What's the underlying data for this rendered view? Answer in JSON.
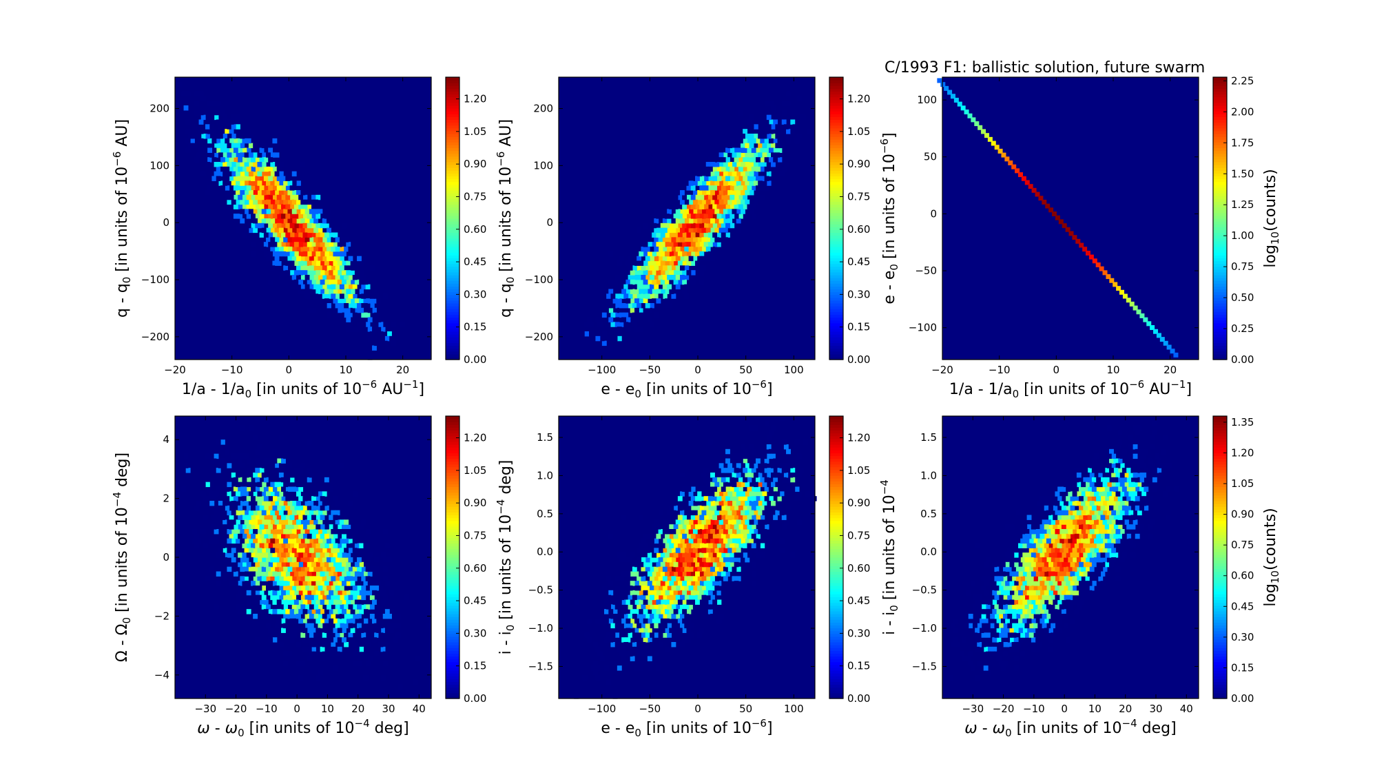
{
  "figure_title": "C/1993 F1:  ballistic solution, future swarm",
  "colormap": "jet",
  "chart_data": [
    {
      "type": "heatmap",
      "subtype": "hexbin",
      "xlabel": "1/a - 1/a0 [in units of 10-6 AU-1]",
      "ylabel": "q - q0 [in units of 10-6 AU]",
      "xlim": [
        -20,
        25
      ],
      "ylim": [
        -240,
        255
      ],
      "xticks": [
        -20,
        -10,
        0,
        10,
        20
      ],
      "yticks": [
        -200,
        -100,
        0,
        100,
        200
      ],
      "density": {
        "center": [
          0,
          0
        ],
        "x_sigma": 6.3,
        "y_sigma": 75,
        "correlation": -0.88,
        "points": 3500
      },
      "colorbar": {
        "ticks": [
          "0.00",
          "0.15",
          "0.30",
          "0.45",
          "0.60",
          "0.75",
          "0.90",
          "1.05",
          "1.20"
        ],
        "max": 1.3,
        "label": ""
      }
    },
    {
      "type": "heatmap",
      "subtype": "hexbin",
      "xlabel": "e - e0 [in units of 10-6]",
      "ylabel": "q - q0 [in units of 10-6 AU]",
      "xlim": [
        -145,
        122
      ],
      "ylim": [
        -240,
        255
      ],
      "xticks": [
        -100,
        -50,
        0,
        50,
        100
      ],
      "yticks": [
        -200,
        -100,
        0,
        100,
        200
      ],
      "density": {
        "center": [
          0,
          0
        ],
        "x_sigma": 38,
        "y_sigma": 75,
        "correlation": 0.9,
        "points": 3500
      },
      "colorbar": {
        "ticks": [
          "0.00",
          "0.15",
          "0.30",
          "0.45",
          "0.60",
          "0.75",
          "0.90",
          "1.05",
          "1.20"
        ],
        "max": 1.3,
        "label": ""
      }
    },
    {
      "type": "heatmap",
      "subtype": "hexbin",
      "title": "C/1993 F1:  ballistic solution, future swarm",
      "xlabel": "1/a - 1/a0 [in units of 10-6 AU-1]",
      "ylabel": "e - e0 [in units of 10-6]",
      "xlim": [
        -20,
        25
      ],
      "ylim": [
        -128,
        120
      ],
      "xticks": [
        -20,
        -10,
        0,
        10,
        20
      ],
      "yticks": [
        -100,
        -50,
        0,
        50,
        100
      ],
      "line": {
        "from": [
          -20.5,
          117
        ],
        "to": [
          21,
          -124
        ]
      },
      "colorbar": {
        "ticks": [
          "0.00",
          "0.25",
          "0.50",
          "0.75",
          "1.00",
          "1.25",
          "1.50",
          "1.75",
          "2.00",
          "2.25"
        ],
        "max": 2.28,
        "label": "log10(counts)"
      }
    },
    {
      "type": "heatmap",
      "subtype": "hexbin",
      "xlabel": "ω - ω0 [in units of 10-4 deg]",
      "ylabel": "Ω - Ω0 [in units of 10-4 deg]",
      "xlim": [
        -40,
        44
      ],
      "ylim": [
        -4.8,
        4.8
      ],
      "xticks": [
        -30,
        -20,
        -10,
        0,
        10,
        20,
        30,
        40
      ],
      "yticks": [
        -4,
        -2,
        0,
        2,
        4
      ],
      "density": {
        "center": [
          0,
          0
        ],
        "x_sigma": 12,
        "y_sigma": 1.35,
        "correlation": -0.5,
        "points": 3500
      },
      "colorbar": {
        "ticks": [
          "0.00",
          "0.15",
          "0.30",
          "0.45",
          "0.60",
          "0.75",
          "0.90",
          "1.05",
          "1.20"
        ],
        "max": 1.3,
        "label": ""
      }
    },
    {
      "type": "heatmap",
      "subtype": "hexbin",
      "xlabel": "e - e0 [in units of 10-6]",
      "ylabel": "i - i0 [in units of 10-4 deg]",
      "xlim": [
        -145,
        122
      ],
      "ylim": [
        -1.92,
        1.78
      ],
      "xticks": [
        -100,
        -50,
        0,
        50,
        100
      ],
      "yticks": [
        -1.5,
        -1.0,
        -0.5,
        0.0,
        0.5,
        1.0,
        1.5
      ],
      "density": {
        "center": [
          0,
          0
        ],
        "x_sigma": 38,
        "y_sigma": 0.55,
        "correlation": 0.75,
        "points": 3500
      },
      "colorbar": {
        "ticks": [
          "0.00",
          "0.15",
          "0.30",
          "0.45",
          "0.60",
          "0.75",
          "0.90",
          "1.05",
          "1.20"
        ],
        "max": 1.3,
        "label": ""
      }
    },
    {
      "type": "heatmap",
      "subtype": "hexbin",
      "xlabel": "ω - ω0 [in units of 10-4 deg]",
      "ylabel": "i - i0 [in units of 10-4",
      "xlim": [
        -40,
        44
      ],
      "ylim": [
        -1.92,
        1.78
      ],
      "xticks": [
        -30,
        -20,
        -10,
        0,
        10,
        20,
        30,
        40
      ],
      "yticks": [
        -1.5,
        -1.0,
        -0.5,
        0.0,
        0.5,
        1.0,
        1.5
      ],
      "density": {
        "center": [
          0,
          0
        ],
        "x_sigma": 12,
        "y_sigma": 0.55,
        "correlation": 0.78,
        "points": 3500
      },
      "colorbar": {
        "ticks": [
          "0.00",
          "0.15",
          "0.30",
          "0.45",
          "0.60",
          "0.75",
          "0.90",
          "1.05",
          "1.20",
          "1.35"
        ],
        "max": 1.38,
        "label": "log10(counts)"
      }
    }
  ],
  "label_markup": {
    "x_0": [
      "1/a - 1/a",
      {
        "sub": "0"
      },
      " [in units of 10",
      {
        "sup": "−6"
      },
      " AU",
      {
        "sup": "−1"
      },
      "]"
    ],
    "y_0": [
      "q - q",
      {
        "sub": "0"
      },
      " [in units of 10",
      {
        "sup": "−6"
      },
      " AU]"
    ],
    "x_1": [
      "e - e",
      {
        "sub": "0"
      },
      " [in units of 10",
      {
        "sup": "−6"
      },
      "]"
    ],
    "y_1": [
      "q - q",
      {
        "sub": "0"
      },
      " [in units of 10",
      {
        "sup": "−6"
      },
      " AU]"
    ],
    "x_2": [
      "1/a - 1/a",
      {
        "sub": "0"
      },
      " [in units of 10",
      {
        "sup": "−6"
      },
      " AU",
      {
        "sup": "−1"
      },
      "]"
    ],
    "y_2": [
      "e - e",
      {
        "sub": "0"
      },
      " [in units of 10",
      {
        "sup": "−6"
      },
      "]"
    ],
    "x_3": [
      {
        "it": "ω"
      },
      " - ",
      {
        "it": "ω"
      },
      {
        "sub": "0"
      },
      " [in units of 10",
      {
        "sup": "−4"
      },
      " deg]"
    ],
    "y_3": [
      "Ω - Ω",
      {
        "sub": "0"
      },
      " [in units of 10",
      {
        "sup": "−4"
      },
      " deg]"
    ],
    "x_4": [
      "e - e",
      {
        "sub": "0"
      },
      " [in units of 10",
      {
        "sup": "−6"
      },
      "]"
    ],
    "y_4": [
      "i - i",
      {
        "sub": "0"
      },
      " [in units of 10",
      {
        "sup": "−4"
      },
      " deg]"
    ],
    "x_5": [
      {
        "it": "ω"
      },
      " - ",
      {
        "it": "ω"
      },
      {
        "sub": "0"
      },
      " [in units of 10",
      {
        "sup": "−4"
      },
      " deg]"
    ],
    "y_5": [
      "i - i",
      {
        "sub": "0"
      },
      " [in units of 10",
      {
        "sup": "−4"
      }
    ],
    "cbar_2": [
      "log",
      {
        "sub": "10"
      },
      "(counts)"
    ],
    "cbar_5": [
      "log",
      {
        "sub": "10"
      },
      "(counts)"
    ]
  }
}
